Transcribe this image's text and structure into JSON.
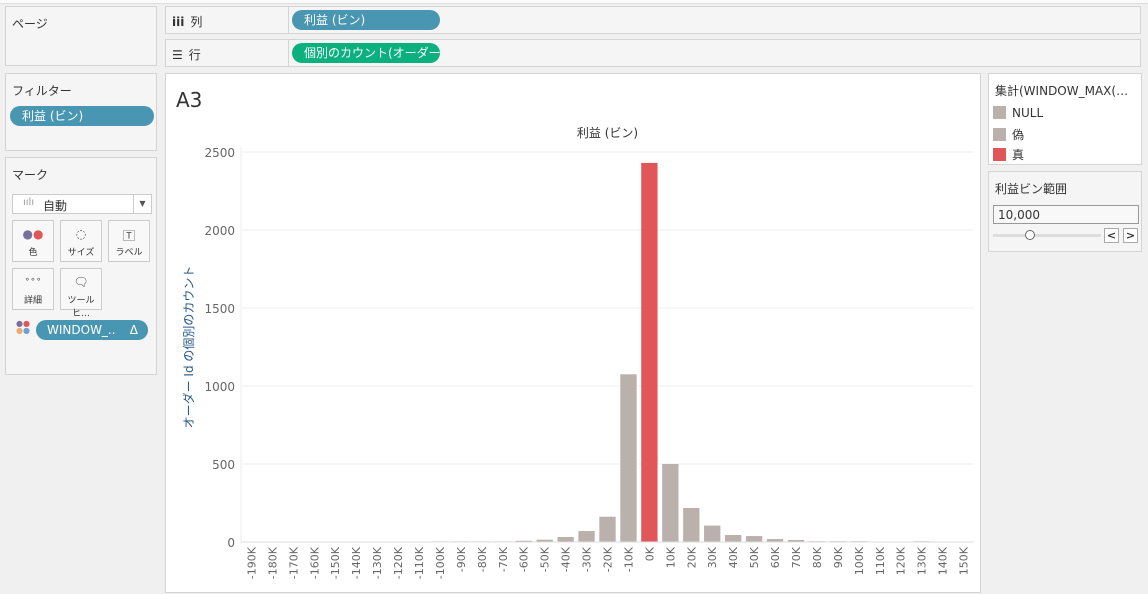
{
  "pages": {
    "title": "ページ"
  },
  "shelves": {
    "columns": {
      "icon": "columns-icon",
      "label": "列",
      "pill": "利益 (ビン)"
    },
    "rows": {
      "icon": "rows-icon",
      "label": "行",
      "pill": "個別のカウント(オーダー .."
    }
  },
  "filters": {
    "title": "フィルター",
    "pill": "利益 (ビン)"
  },
  "marks": {
    "title": "マーク",
    "type": "自動",
    "buttons": [
      {
        "label": "色",
        "icon": "color-icon"
      },
      {
        "label": "サイズ",
        "icon": "size-icon"
      },
      {
        "label": "ラベル",
        "icon": "label-icon"
      },
      {
        "label": "詳細",
        "icon": "detail-icon"
      },
      {
        "label": "ツールヒ…",
        "icon": "tooltip-icon"
      }
    ],
    "pill": "WINDOW_..",
    "pill_delta": "Δ"
  },
  "sheet": {
    "title": "A3"
  },
  "legend": {
    "title": "集計(WINDOW_MAX(…",
    "items": [
      {
        "label": "NULL",
        "color": "#bab0ac"
      },
      {
        "label": "偽",
        "color": "#bab0ac"
      },
      {
        "label": "真",
        "color": "#e15759"
      }
    ]
  },
  "parameter": {
    "title": "利益ビン範囲",
    "value": "10,000",
    "prev": "<",
    "next": ">"
  },
  "chart_data": {
    "type": "bar",
    "title": "利益 (ビン)",
    "xlabel": "",
    "ylabel": "オーダー Id の個別のカウント",
    "ylim": [
      0,
      2500
    ],
    "yticks": [
      0,
      500,
      1000,
      1500,
      2000,
      2500
    ],
    "grid": true,
    "categories": [
      "-190K",
      "-180K",
      "-170K",
      "-160K",
      "-150K",
      "-140K",
      "-130K",
      "-120K",
      "-110K",
      "-100K",
      "-90K",
      "-80K",
      "-70K",
      "-60K",
      "-50K",
      "-40K",
      "-30K",
      "-20K",
      "-10K",
      "0K",
      "10K",
      "20K",
      "30K",
      "40K",
      "50K",
      "60K",
      "70K",
      "80K",
      "90K",
      "100K",
      "110K",
      "120K",
      "130K",
      "140K",
      "150K"
    ],
    "values": [
      0,
      0,
      0,
      0,
      0,
      0,
      0,
      0,
      0,
      4,
      4,
      4,
      4,
      8,
      15,
      32,
      70,
      162,
      1075,
      2430,
      500,
      218,
      105,
      45,
      38,
      19,
      13,
      5,
      5,
      5,
      0,
      0,
      5,
      0,
      0
    ],
    "highlight": [
      "NULL",
      "NULL",
      "NULL",
      "NULL",
      "NULL",
      "NULL",
      "NULL",
      "NULL",
      "NULL",
      "偽",
      "偽",
      "偽",
      "偽",
      "偽",
      "偽",
      "偽",
      "偽",
      "偽",
      "偽",
      "真",
      "偽",
      "偽",
      "偽",
      "偽",
      "偽",
      "偽",
      "偽",
      "偽",
      "偽",
      "偽",
      "NULL",
      "NULL",
      "偽",
      "NULL",
      "NULL"
    ]
  }
}
